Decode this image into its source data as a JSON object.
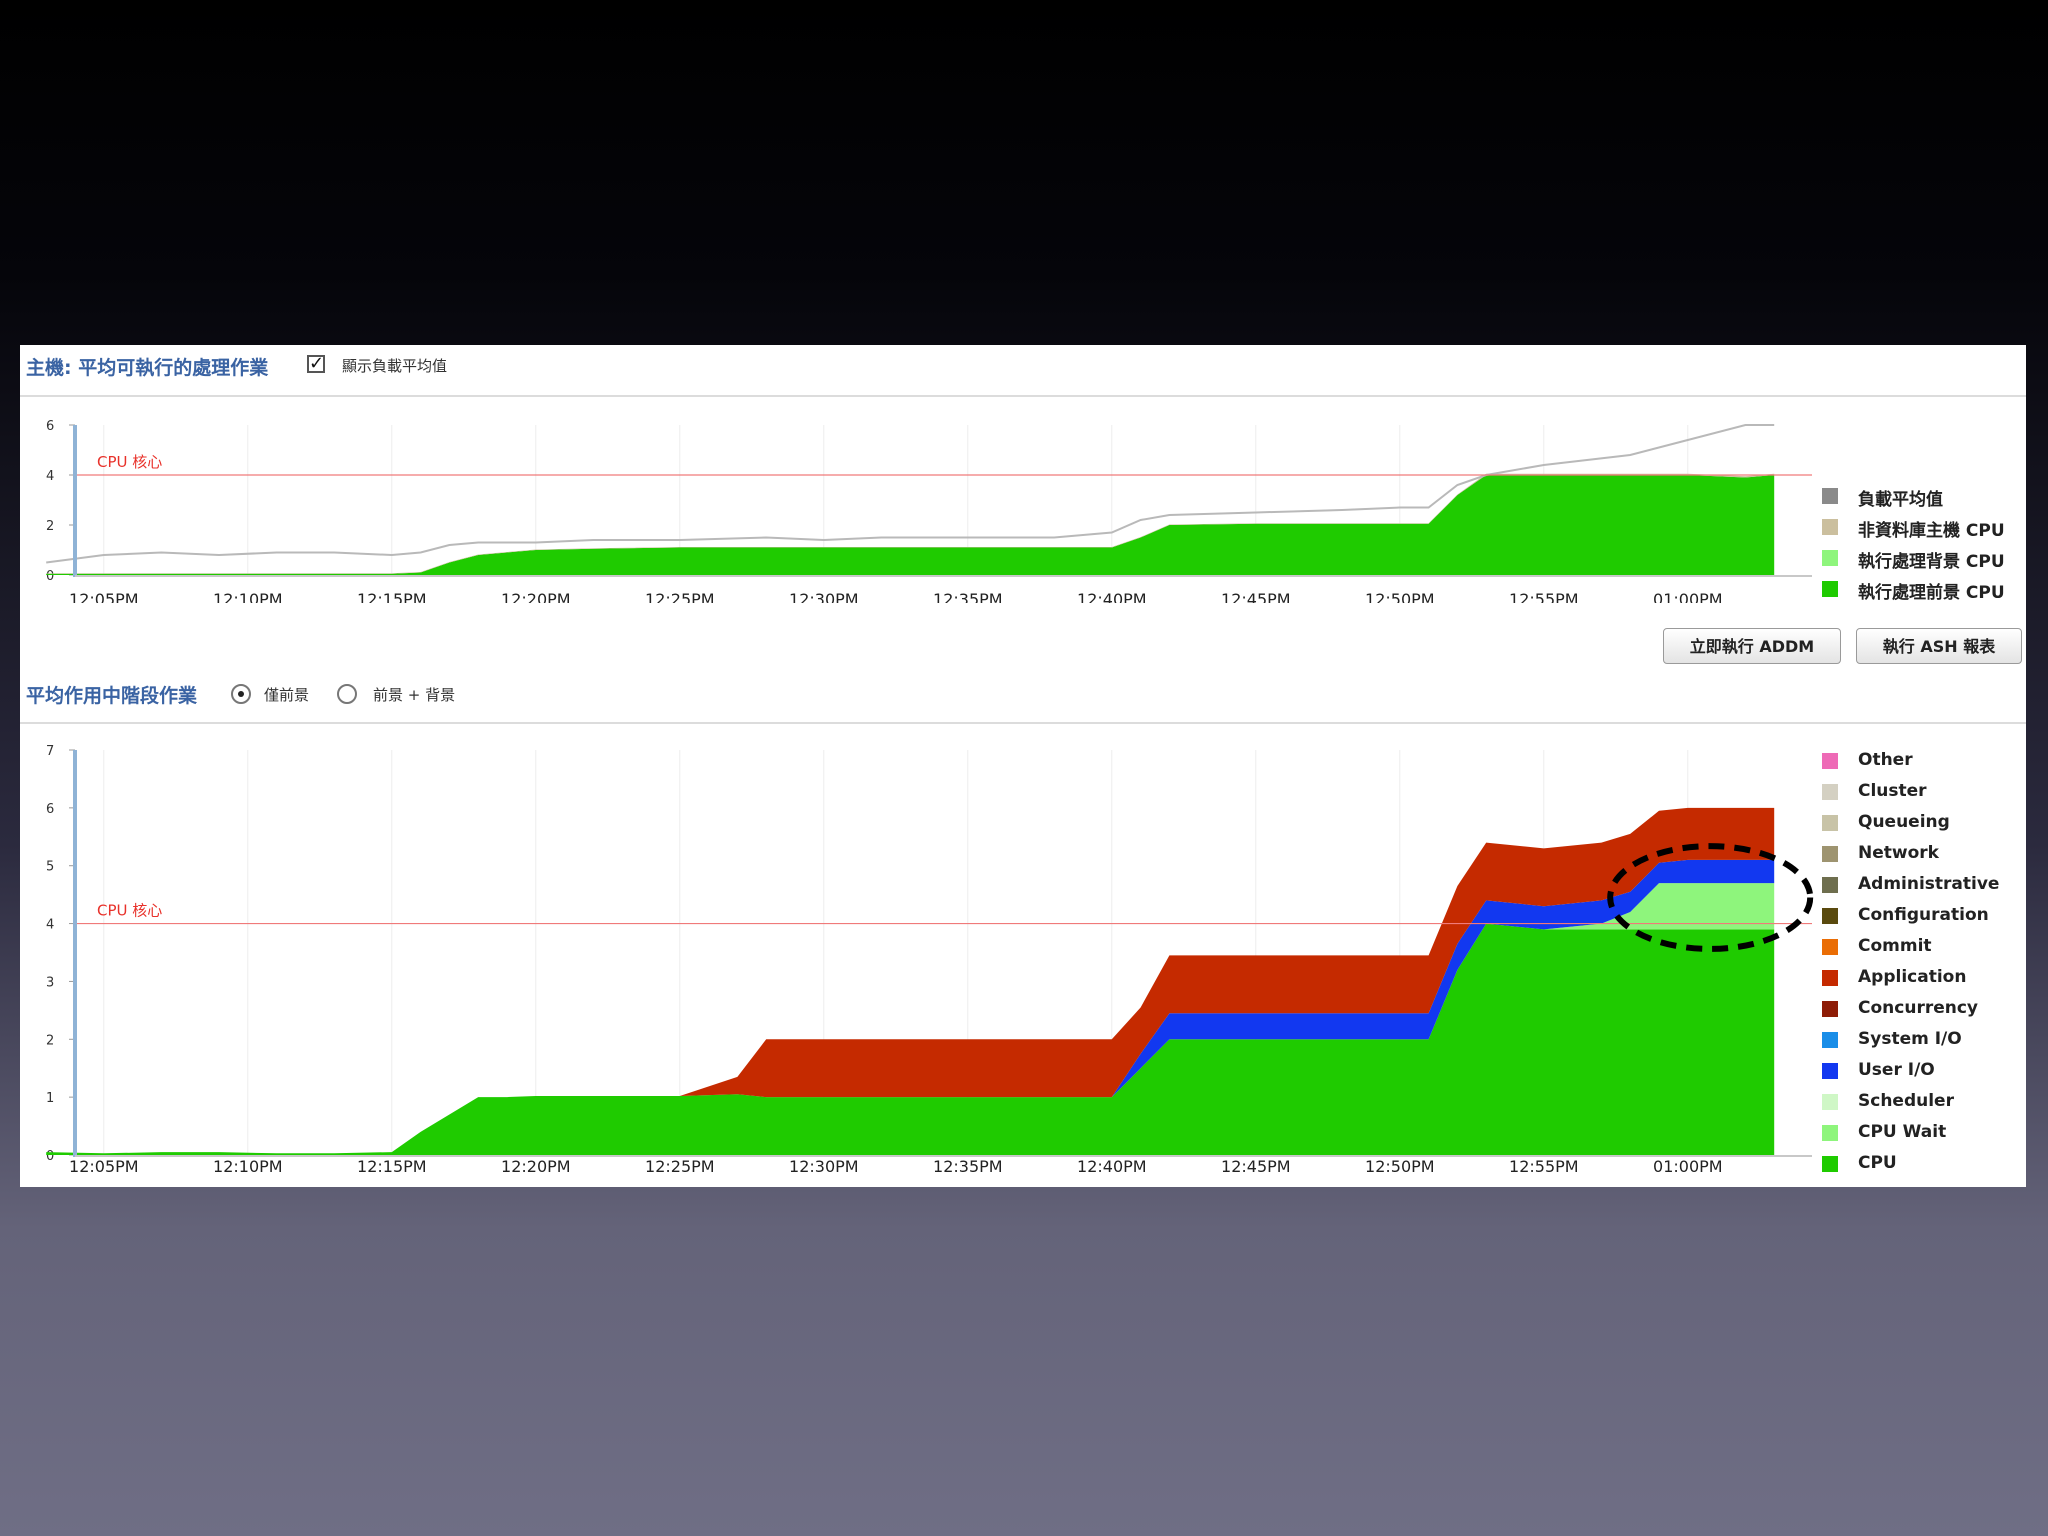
{
  "top_section": {
    "title": "主機: 平均可執行的處理作業",
    "checkbox_label": "顯示負載平均值",
    "checkbox_checked": true
  },
  "bottom_section": {
    "title": "平均作用中階段作業",
    "radio_foreground": "僅前景",
    "radio_both": "前景 + 背景",
    "selected": "僅前景"
  },
  "buttons": {
    "addm": "立即執行 ADDM",
    "ash": "執行 ASH 報表"
  },
  "chart_data": [
    {
      "type": "area",
      "stacked": true,
      "x": [
        "12:03PM",
        "12:05PM",
        "12:07PM",
        "12:09PM",
        "12:11PM",
        "12:13PM",
        "12:15PM",
        "12:16PM",
        "12:17PM",
        "12:18PM",
        "12:19PM",
        "12:20PM",
        "12:22PM",
        "12:25PM",
        "12:28PM",
        "12:30PM",
        "12:32PM",
        "12:35PM",
        "12:38PM",
        "12:39PM",
        "12:40PM",
        "12:41PM",
        "12:42PM",
        "12:45PM",
        "12:48PM",
        "12:50PM",
        "12:51PM",
        "12:52PM",
        "12:53PM",
        "12:55PM",
        "12:58PM",
        "01:00PM",
        "01:02PM",
        "01:03PM"
      ],
      "xticks": [
        "12:05PM",
        "12:10PM",
        "12:15PM",
        "12:20PM",
        "12:25PM",
        "12:30PM",
        "12:35PM",
        "12:40PM",
        "12:45PM",
        "12:50PM",
        "12:55PM",
        "01:00PM"
      ],
      "yticks": [
        0,
        2,
        4,
        6
      ],
      "ylim": [
        0,
        6
      ],
      "series": [
        {
          "name": "執行處理前景 CPU",
          "color": "#1fcb00",
          "values": [
            0.05,
            0.05,
            0.05,
            0.05,
            0.05,
            0.05,
            0.05,
            0.1,
            0.5,
            0.8,
            0.9,
            1.0,
            1.05,
            1.1,
            1.1,
            1.1,
            1.1,
            1.1,
            1.1,
            1.1,
            1.1,
            1.5,
            2.0,
            2.05,
            2.05,
            2.05,
            2.05,
            3.2,
            4.0,
            4.0,
            4.0,
            4.0,
            3.9,
            4.0
          ]
        },
        {
          "name": "執行處理背景 CPU",
          "color": "#8ef57c",
          "values": [
            0,
            0,
            0,
            0,
            0,
            0,
            0,
            0,
            0,
            0,
            0,
            0,
            0,
            0,
            0,
            0,
            0,
            0,
            0,
            0,
            0,
            0,
            0,
            0,
            0,
            0,
            0,
            0,
            0,
            0,
            0,
            0,
            0,
            0
          ]
        },
        {
          "name": "非資料庫主機 CPU",
          "color": "#cbbf9e",
          "values": [
            0.02,
            0.02,
            0.02,
            0.02,
            0.02,
            0.02,
            0.02,
            0.02,
            0.02,
            0.02,
            0.02,
            0.02,
            0.02,
            0.02,
            0.02,
            0.02,
            0.02,
            0.02,
            0.02,
            0.02,
            0.02,
            0.02,
            0.02,
            0.02,
            0.02,
            0.02,
            0.02,
            0.02,
            0.05,
            0.05,
            0.05,
            0.05,
            0.05,
            0.05
          ]
        }
      ],
      "line": {
        "name": "負載平均值",
        "color": "#b9b9b9",
        "values": [
          0.5,
          0.8,
          0.9,
          0.8,
          0.9,
          0.9,
          0.8,
          0.9,
          1.2,
          1.3,
          1.3,
          1.3,
          1.4,
          1.4,
          1.5,
          1.4,
          1.5,
          1.5,
          1.5,
          1.6,
          1.7,
          2.2,
          2.4,
          2.5,
          2.6,
          2.7,
          2.7,
          3.6,
          4.0,
          4.4,
          4.8,
          5.4,
          6.0,
          6.0
        ]
      },
      "annotation": "CPU 核心",
      "threshold": 4,
      "legend": [
        "負載平均值",
        "非資料庫主機 CPU",
        "執行處理背景 CPU",
        "執行處理前景 CPU"
      ],
      "legend_colors": [
        "#8a8a8a",
        "#cbbf9e",
        "#8ef57c",
        "#1fcb00"
      ]
    },
    {
      "type": "area",
      "stacked": true,
      "x": [
        "12:03PM",
        "12:05PM",
        "12:07PM",
        "12:09PM",
        "12:11PM",
        "12:13PM",
        "12:15PM",
        "12:16PM",
        "12:17PM",
        "12:18PM",
        "12:19PM",
        "12:20PM",
        "12:22PM",
        "12:25PM",
        "12:27PM",
        "12:28PM",
        "12:30PM",
        "12:32PM",
        "12:35PM",
        "12:38PM",
        "12:39PM",
        "12:40PM",
        "12:41PM",
        "12:42PM",
        "12:45PM",
        "12:48PM",
        "12:50PM",
        "12:51PM",
        "12:52PM",
        "12:53PM",
        "12:55PM",
        "12:57PM",
        "12:58PM",
        "12:59PM",
        "01:00PM",
        "01:02PM",
        "01:03PM"
      ],
      "xticks": [
        "12:05PM",
        "12:10PM",
        "12:15PM",
        "12:20PM",
        "12:25PM",
        "12:30PM",
        "12:35PM",
        "12:40PM",
        "12:45PM",
        "12:50PM",
        "12:55PM",
        "01:00PM"
      ],
      "yticks": [
        0,
        1,
        2,
        3,
        4,
        5,
        6,
        7
      ],
      "ylim": [
        0,
        7
      ],
      "series": [
        {
          "name": "CPU",
          "color": "#1fcb00",
          "values": [
            0.05,
            0.03,
            0.05,
            0.05,
            0.03,
            0.03,
            0.05,
            0.4,
            0.7,
            1.0,
            1.0,
            1.02,
            1.02,
            1.02,
            1.05,
            1.0,
            1.0,
            1.0,
            1.0,
            1.0,
            1.0,
            1.0,
            1.5,
            2.0,
            2.0,
            2.0,
            2.0,
            2.0,
            3.2,
            4.0,
            3.9,
            3.9,
            3.9,
            3.9,
            3.9,
            3.9,
            3.9
          ]
        },
        {
          "name": "CPU Wait",
          "color": "#8ef57c",
          "values": [
            0,
            0,
            0,
            0,
            0,
            0,
            0,
            0,
            0,
            0,
            0,
            0,
            0,
            0,
            0,
            0,
            0,
            0,
            0,
            0,
            0,
            0,
            0,
            0,
            0,
            0,
            0,
            0,
            0,
            0,
            0,
            0.1,
            0.3,
            0.8,
            0.8,
            0.8,
            0.8
          ]
        },
        {
          "name": "User I/O",
          "color": "#1238f0",
          "values": [
            0,
            0,
            0,
            0,
            0,
            0,
            0,
            0,
            0,
            0,
            0,
            0,
            0,
            0,
            0,
            0,
            0,
            0,
            0,
            0,
            0,
            0,
            0.25,
            0.45,
            0.45,
            0.45,
            0.45,
            0.45,
            0.45,
            0.4,
            0.4,
            0.4,
            0.35,
            0.35,
            0.4,
            0.4,
            0.4
          ]
        },
        {
          "name": "Application",
          "color": "#c52a00",
          "values": [
            0,
            0,
            0,
            0,
            0,
            0,
            0,
            0,
            0,
            0,
            0,
            0,
            0,
            0,
            0.3,
            1.0,
            1.0,
            1.0,
            1.0,
            1.0,
            1.0,
            1.0,
            0.8,
            1.0,
            1.0,
            1.0,
            1.0,
            1.0,
            1.0,
            1.0,
            1.0,
            1.0,
            1.0,
            0.9,
            0.9,
            0.9,
            0.9
          ]
        }
      ],
      "annotation": "CPU 核心",
      "threshold": 4,
      "highlight_region": {
        "x": [
          "12:58PM",
          "01:03PM"
        ],
        "y": [
          3.7,
          5.2
        ]
      },
      "legend": [
        "Other",
        "Cluster",
        "Queueing",
        "Network",
        "Administrative",
        "Configuration",
        "Commit",
        "Application",
        "Concurrency",
        "System I/O",
        "User I/O",
        "Scheduler",
        "CPU Wait",
        "CPU"
      ],
      "legend_colors": [
        "#ee6ab6",
        "#d4d0c2",
        "#c8c3a7",
        "#9e9470",
        "#6e6e4e",
        "#5a4a0e",
        "#ea6d05",
        "#c52a00",
        "#8e1c06",
        "#1a8ee8",
        "#1238f0",
        "#cff7c6",
        "#8ef57c",
        "#1fcb00"
      ]
    }
  ]
}
